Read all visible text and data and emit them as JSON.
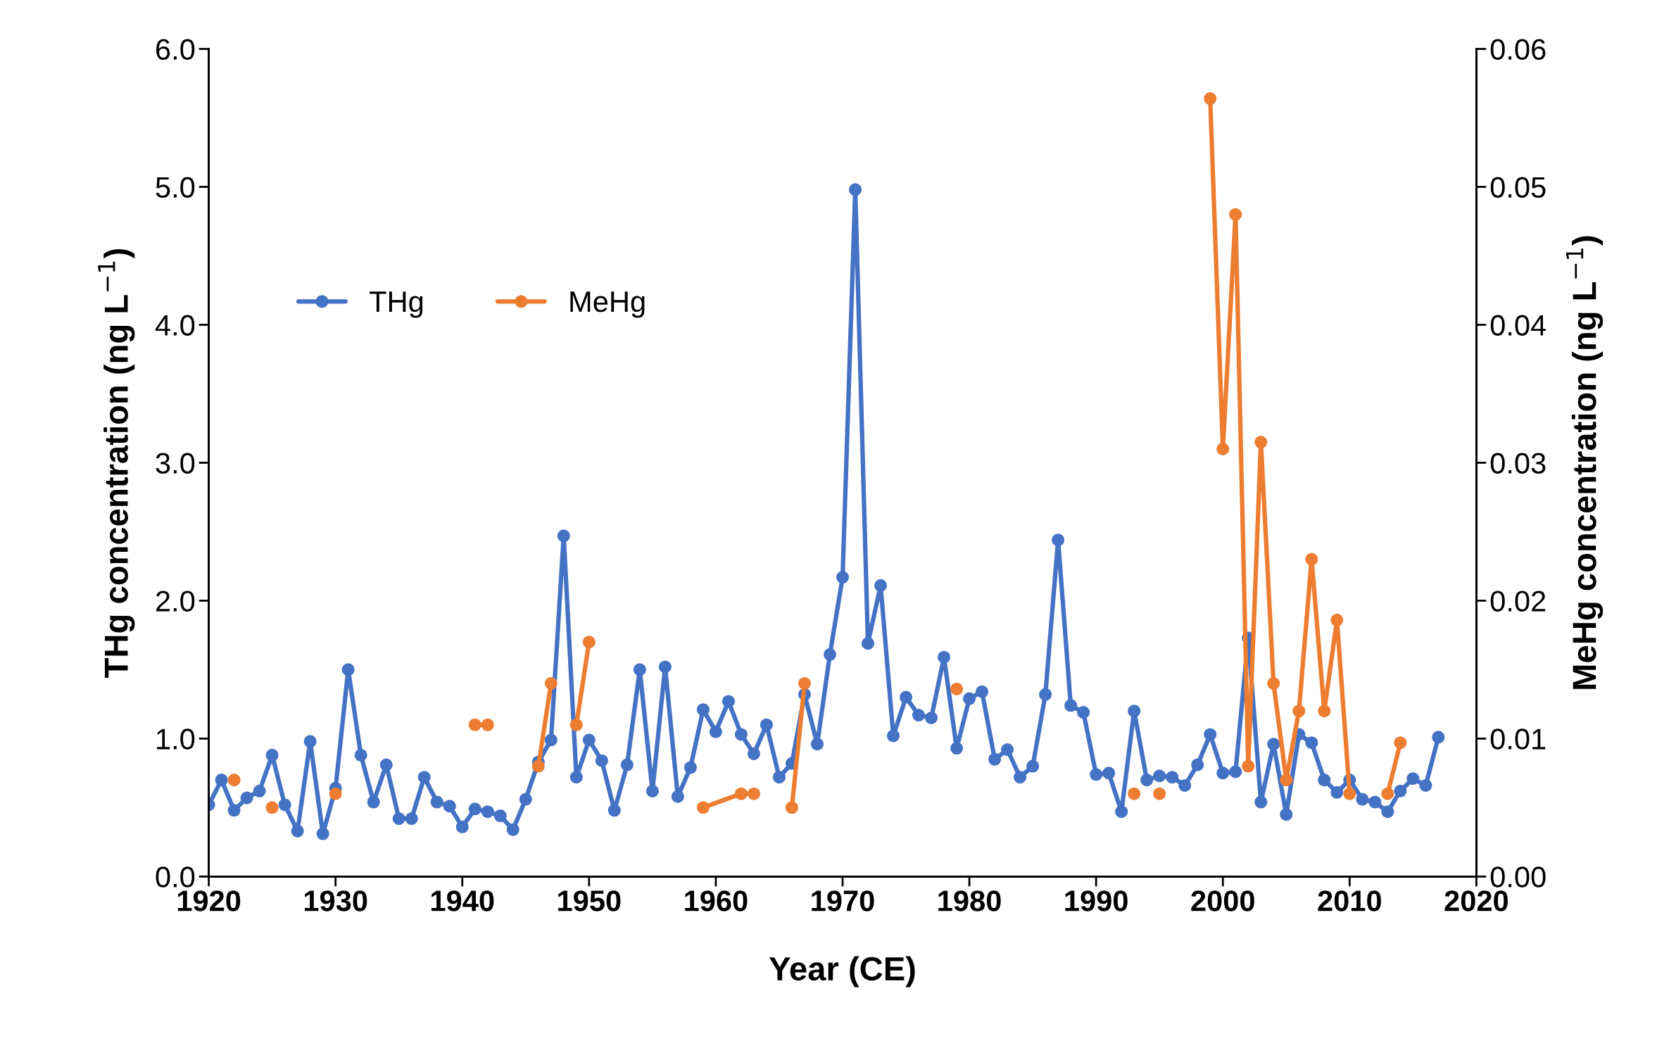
{
  "chart_data": {
    "type": "line",
    "xlabel": "Year (CE)",
    "ylabel": "THg concentration (ng L$^{−1}$)",
    "y2label": "MeHg concentration (ng L$^{−1}$)",
    "xlim": [
      1920,
      2020
    ],
    "xticks": [
      1920,
      1930,
      1940,
      1950,
      1960,
      1970,
      1980,
      1990,
      2000,
      2010,
      2020
    ],
    "ylim": [
      0,
      6
    ],
    "yticks": [
      {
        "value": 0,
        "label": "0.0"
      },
      {
        "value": 1,
        "label": "1.0"
      },
      {
        "value": 2,
        "label": "2.0"
      },
      {
        "value": 3,
        "label": "3.0"
      },
      {
        "value": 4,
        "label": "4.0"
      },
      {
        "value": 5,
        "label": "5.0"
      },
      {
        "value": 6,
        "label": "6.0"
      }
    ],
    "y2lim": [
      0,
      0.06
    ],
    "y2ticks": [
      {
        "value": 0,
        "label": "0.00"
      },
      {
        "value": 0.01,
        "label": "0.01"
      },
      {
        "value": 0.02,
        "label": "0.02"
      },
      {
        "value": 0.03,
        "label": "0.03"
      },
      {
        "value": 0.04,
        "label": "0.04"
      },
      {
        "value": 0.05,
        "label": "0.05"
      },
      {
        "value": 0.06,
        "label": "0.06"
      }
    ],
    "grid": false,
    "legend": "upper left",
    "marker": "circle",
    "line_style": "solid",
    "series": [
      {
        "name": "THg",
        "color": "#4472c4",
        "x": [
          1920,
          1921,
          1922,
          1923,
          1924,
          1925,
          1926,
          1927,
          1928,
          1929,
          1930,
          1931,
          1932,
          1933,
          1934,
          1935,
          1936,
          1937,
          1938,
          1939,
          1940,
          1941,
          1942,
          1943,
          1944,
          1945,
          1946,
          1947,
          1948,
          1949,
          1950,
          1951,
          1952,
          1953,
          1954,
          1955,
          1956,
          1957,
          1958,
          1959,
          1960,
          1961,
          1962,
          1963,
          1964,
          1965,
          1966,
          1967,
          1968,
          1969,
          1970,
          1971,
          1972,
          1973,
          1974,
          1975,
          1976,
          1977,
          1978,
          1979,
          1980,
          1981,
          1982,
          1983,
          1984,
          1985,
          1986,
          1987,
          1988,
          1989,
          1990,
          1991,
          1992,
          1993,
          1994,
          1995,
          1996,
          1997,
          1998,
          1999,
          2000,
          2001,
          2002,
          2003,
          2004,
          2005,
          2006,
          2007,
          2008,
          2009,
          2010,
          2011,
          2012,
          2013,
          2014,
          2015,
          2016,
          2017
        ],
        "values": [
          0.52,
          0.7,
          0.48,
          0.57,
          0.62,
          0.88,
          0.52,
          0.33,
          0.98,
          0.31,
          0.64,
          1.5,
          0.88,
          0.54,
          0.81,
          0.42,
          0.42,
          0.72,
          0.54,
          0.51,
          0.36,
          0.49,
          0.47,
          0.44,
          0.34,
          0.56,
          0.83,
          0.99,
          2.47,
          0.72,
          0.99,
          0.84,
          0.48,
          0.81,
          1.5,
          0.62,
          1.52,
          0.58,
          0.79,
          1.21,
          1.05,
          1.27,
          1.03,
          0.89,
          1.1,
          0.72,
          0.82,
          1.32,
          0.96,
          1.61,
          2.17,
          4.98,
          1.69,
          2.11,
          1.02,
          1.3,
          1.17,
          1.15,
          1.59,
          0.93,
          1.29,
          1.34,
          0.85,
          0.92,
          0.72,
          0.8,
          1.32,
          2.44,
          1.24,
          1.19,
          0.74,
          0.75,
          0.47,
          1.2,
          0.7,
          0.73,
          0.72,
          0.66,
          0.81,
          1.03,
          0.75,
          0.76,
          1.73,
          0.54,
          0.96,
          0.45,
          1.03,
          0.97,
          0.7,
          0.61,
          0.7,
          0.56,
          0.54,
          0.47,
          0.62,
          0.71,
          0.66,
          1.01
        ]
      },
      {
        "name": "MeHg",
        "color": "#ed7d31",
        "axis": "y2",
        "x": [
          1922,
          1923,
          1925,
          1926,
          1930,
          1931,
          1941,
          1942,
          1943,
          1946,
          1947,
          1948,
          1949,
          1950,
          1951,
          1959,
          1962,
          1963,
          1964,
          1966,
          1967,
          1968,
          1979,
          1980,
          1993,
          1994,
          1995,
          1996,
          1999,
          2000,
          2001,
          2002,
          2003,
          2004,
          2005,
          2006,
          2007,
          2008,
          2009,
          2010,
          2011,
          2013,
          2014
        ],
        "values": [
          0.007,
          null,
          0.005,
          null,
          0.006,
          null,
          0.011,
          0.011,
          null,
          0.008,
          0.014,
          null,
          0.011,
          0.017,
          null,
          0.005,
          0.006,
          0.006,
          null,
          0.005,
          0.014,
          null,
          0.0136,
          null,
          0.006,
          null,
          0.006,
          null,
          0.0564,
          0.031,
          0.048,
          0.008,
          0.0315,
          0.014,
          0.007,
          0.012,
          0.023,
          0.012,
          0.0186,
          0.006,
          null,
          0.006,
          0.0097
        ]
      }
    ]
  }
}
